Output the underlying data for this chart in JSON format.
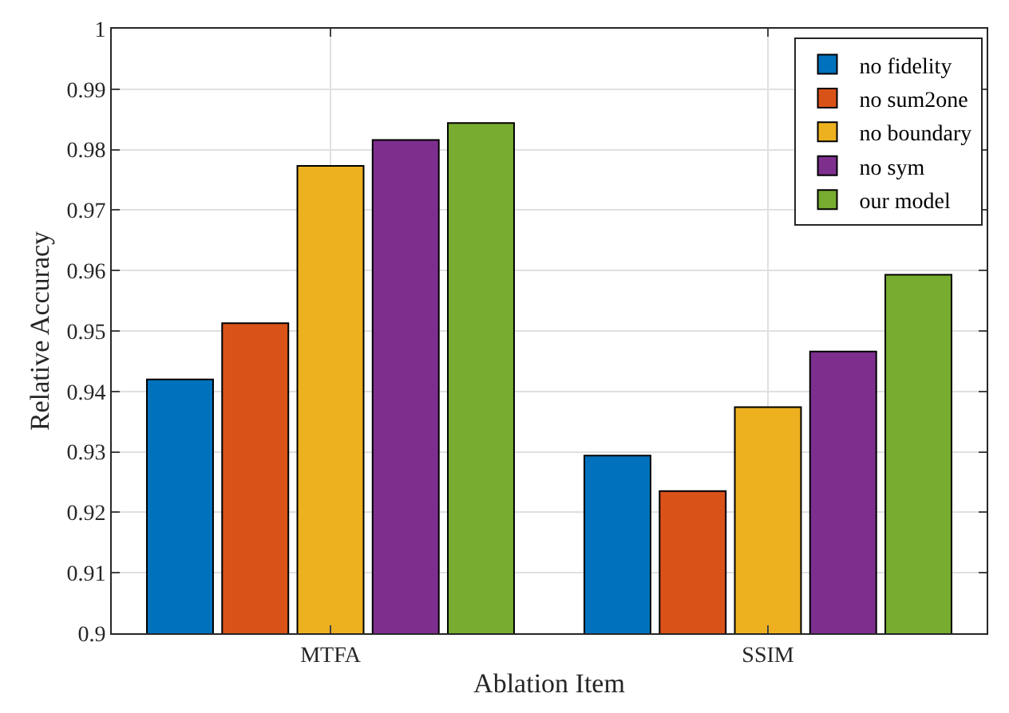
{
  "chart_data": {
    "type": "bar",
    "xlabel": "Ablation Item",
    "ylabel": "Relative Accuracy",
    "categories": [
      "MTFA",
      "SSIM"
    ],
    "series": [
      {
        "name": "no fidelity",
        "color": "#0072bd",
        "values": [
          0.942,
          0.9294
        ]
      },
      {
        "name": "no sum2one",
        "color": "#d95319",
        "values": [
          0.9513,
          0.9235
        ]
      },
      {
        "name": "no boundary",
        "color": "#edb120",
        "values": [
          0.9773,
          0.9374
        ]
      },
      {
        "name": "no sym",
        "color": "#7e2f8e",
        "values": [
          0.9816,
          0.9466
        ]
      },
      {
        "name": "our model",
        "color": "#77ac30",
        "values": [
          0.9844,
          0.9593
        ]
      }
    ],
    "ylim": [
      0.9,
      1
    ],
    "yticks": [
      0.9,
      0.91,
      0.92,
      0.93,
      0.94,
      0.95,
      0.96,
      0.97,
      0.98,
      0.99,
      1
    ],
    "grid": true,
    "legend": "top right"
  }
}
